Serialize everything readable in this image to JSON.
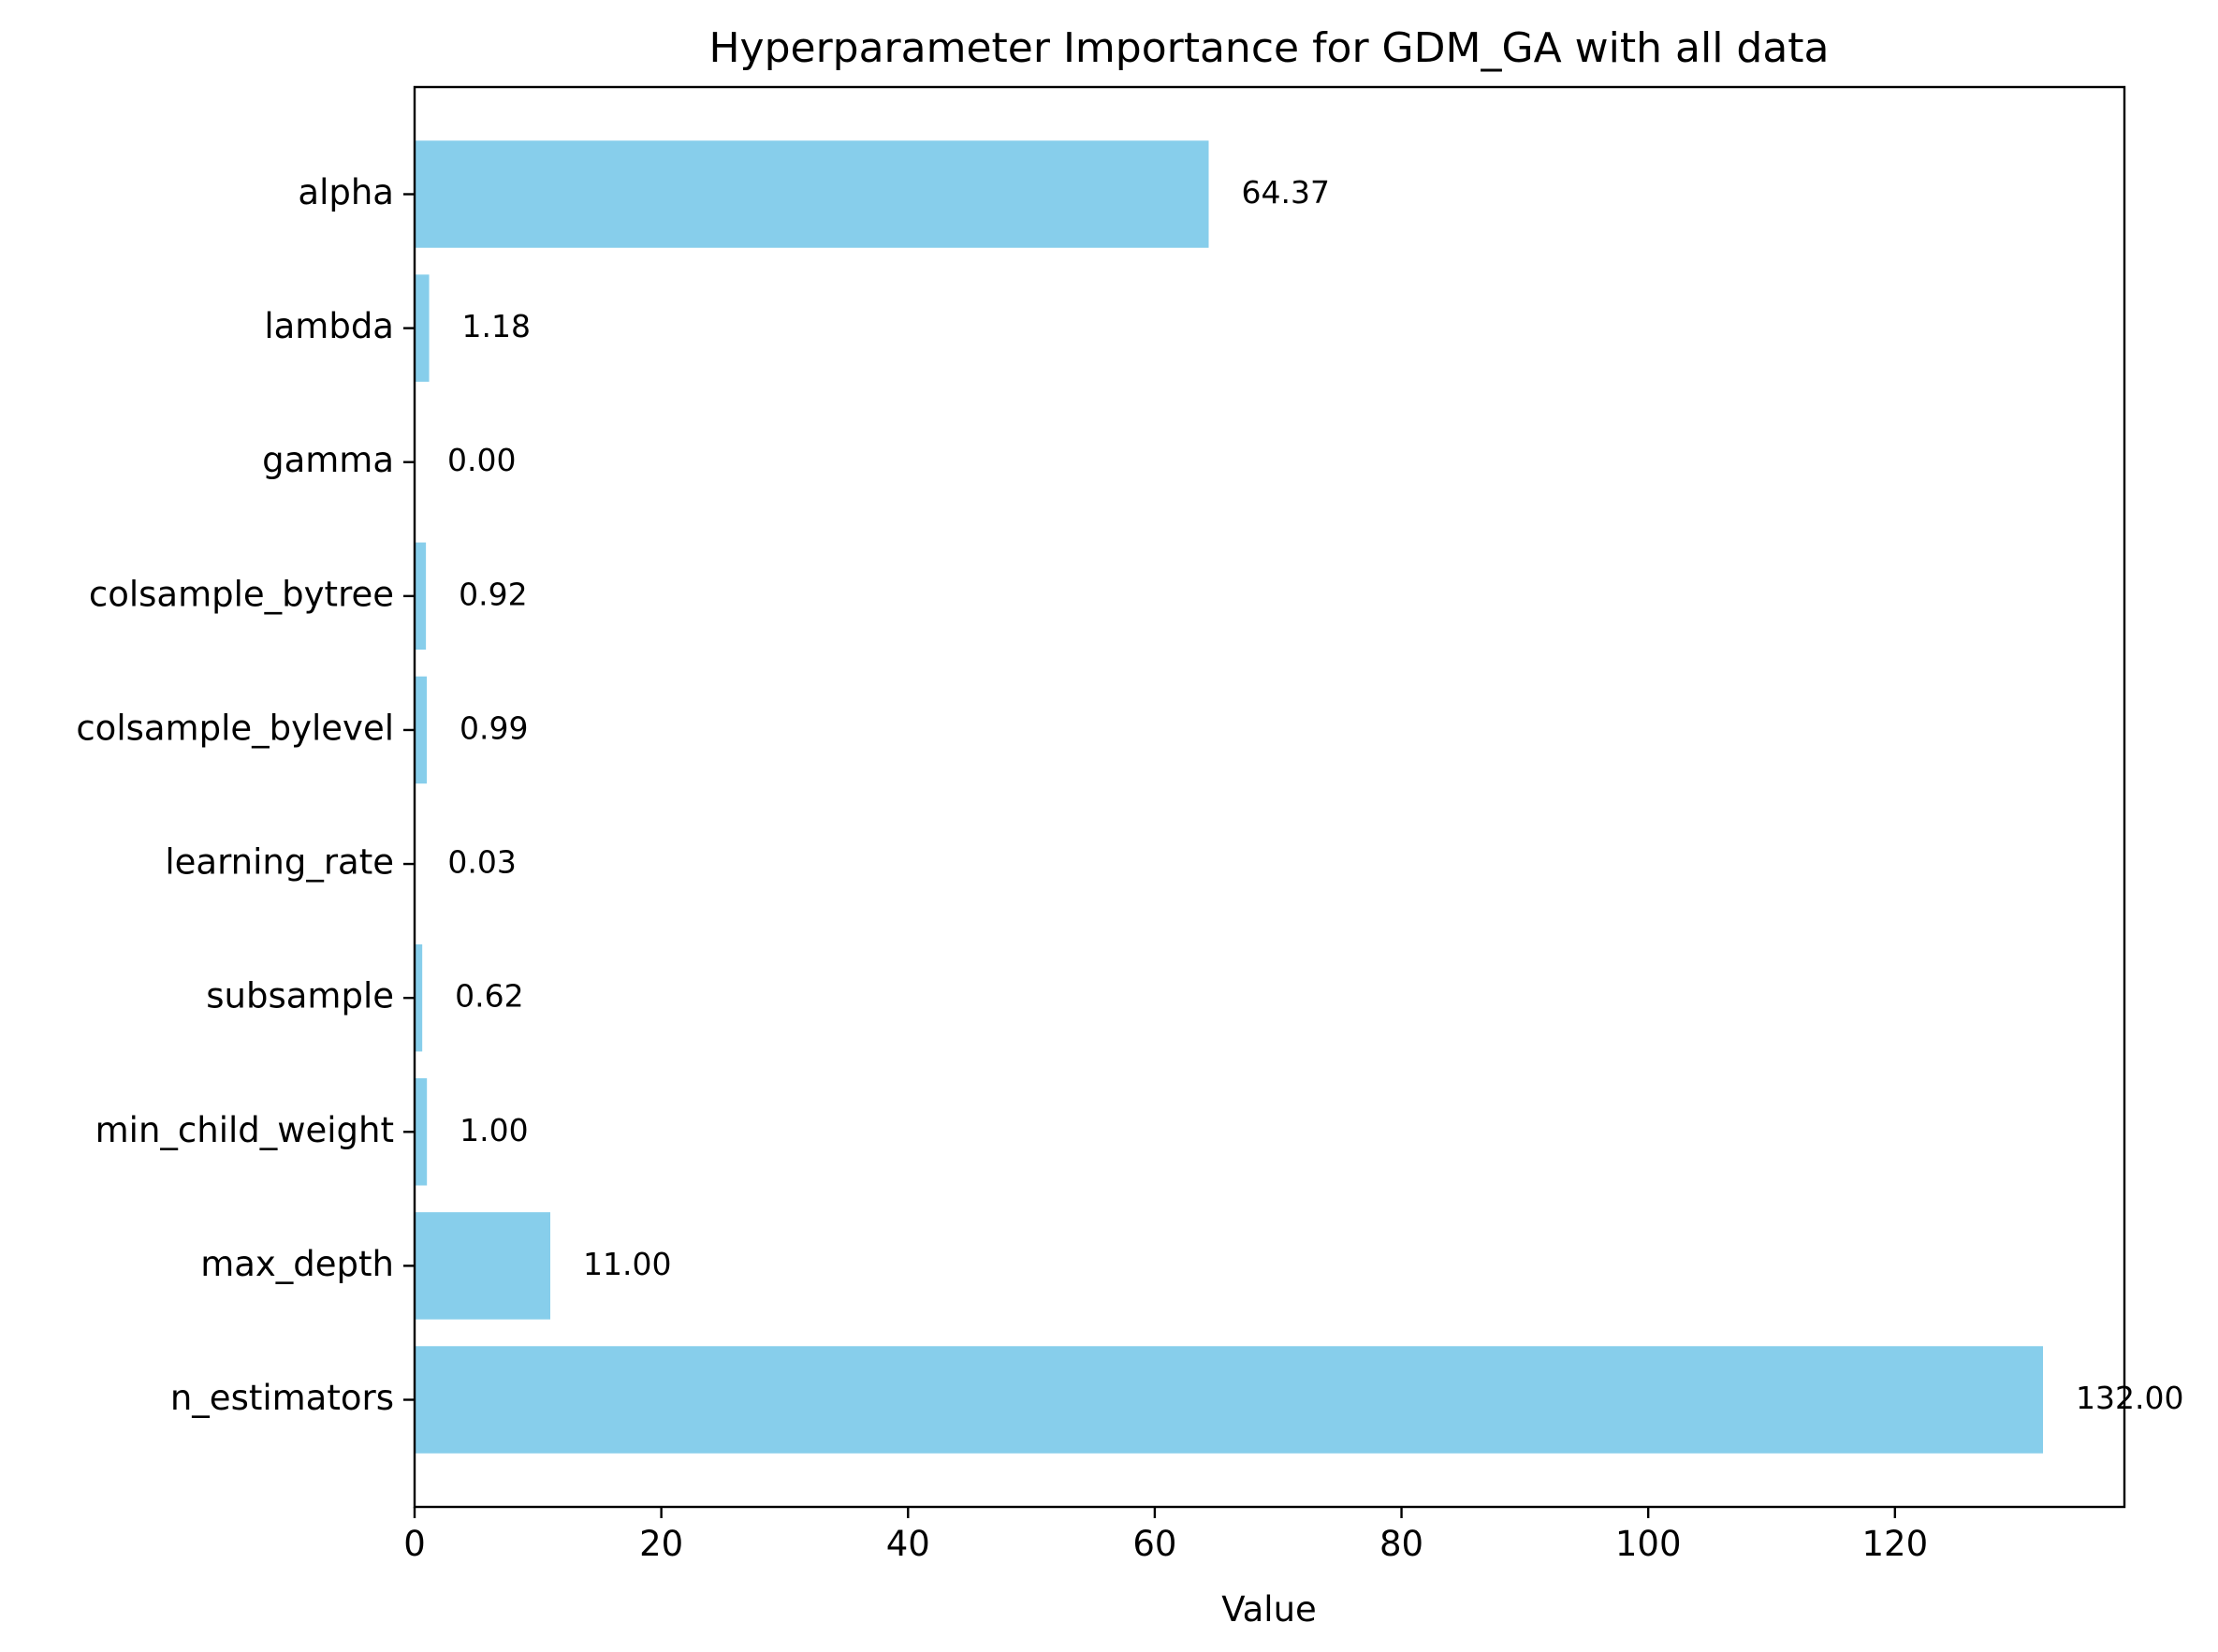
{
  "chart_data": {
    "type": "bar",
    "orientation": "horizontal",
    "title": "Hyperparameter Importance for GDM_GA with all data",
    "xlabel": "Value",
    "ylabel": "",
    "categories": [
      "n_estimators",
      "max_depth",
      "min_child_weight",
      "subsample",
      "learning_rate",
      "colsample_bylevel",
      "colsample_bytree",
      "gamma",
      "lambda",
      "alpha"
    ],
    "values": [
      132.0,
      11.0,
      1.0,
      0.62,
      0.03,
      0.99,
      0.92,
      0.0,
      1.18,
      64.37
    ],
    "data_labels": [
      "132.00",
      "11.00",
      "1.00",
      "0.62",
      "0.03",
      "0.99",
      "0.92",
      "0.00",
      "1.18",
      "64.37"
    ],
    "xlim": [
      0,
      138.6
    ],
    "xticks": [
      0,
      20,
      40,
      60,
      80,
      100,
      120
    ],
    "xtick_labels": [
      "0",
      "20",
      "40",
      "60",
      "80",
      "100",
      "120"
    ],
    "grid": false,
    "bar_color": "#87ceeb"
  }
}
